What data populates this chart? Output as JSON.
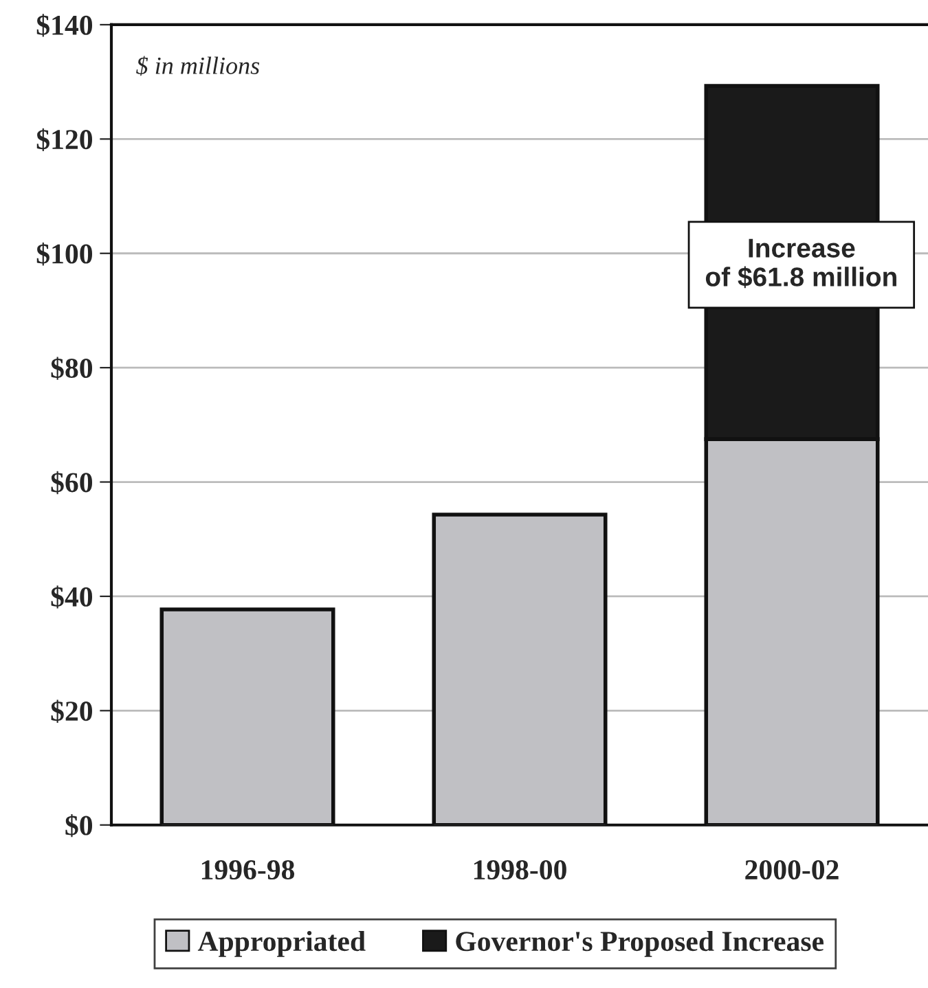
{
  "chart_data": {
    "type": "bar",
    "stacked": true,
    "categories": [
      "1996-98",
      "1998-00",
      "2000-02"
    ],
    "series": [
      {
        "name": "Appropriated",
        "color": "#c0c0c4",
        "values": [
          37.7,
          54.3,
          67.5
        ]
      },
      {
        "name": "Governor's Proposed Increase",
        "color": "#1a1a1a",
        "values": [
          null,
          null,
          61.8
        ]
      }
    ],
    "ylim": [
      0,
      140
    ],
    "yticks": [
      {
        "value": 0,
        "label": "$0"
      },
      {
        "value": 20,
        "label": "$20"
      },
      {
        "value": 40,
        "label": "$40"
      },
      {
        "value": 60,
        "label": "$60"
      },
      {
        "value": 80,
        "label": "$80"
      },
      {
        "value": 100,
        "label": "$100"
      },
      {
        "value": 120,
        "label": "$120"
      },
      {
        "value": 140,
        "label": "$140"
      }
    ],
    "grid": "y",
    "legend": "bottom",
    "annotations": [
      "$ in millions",
      "Increase\nof $61.8 million"
    ]
  }
}
